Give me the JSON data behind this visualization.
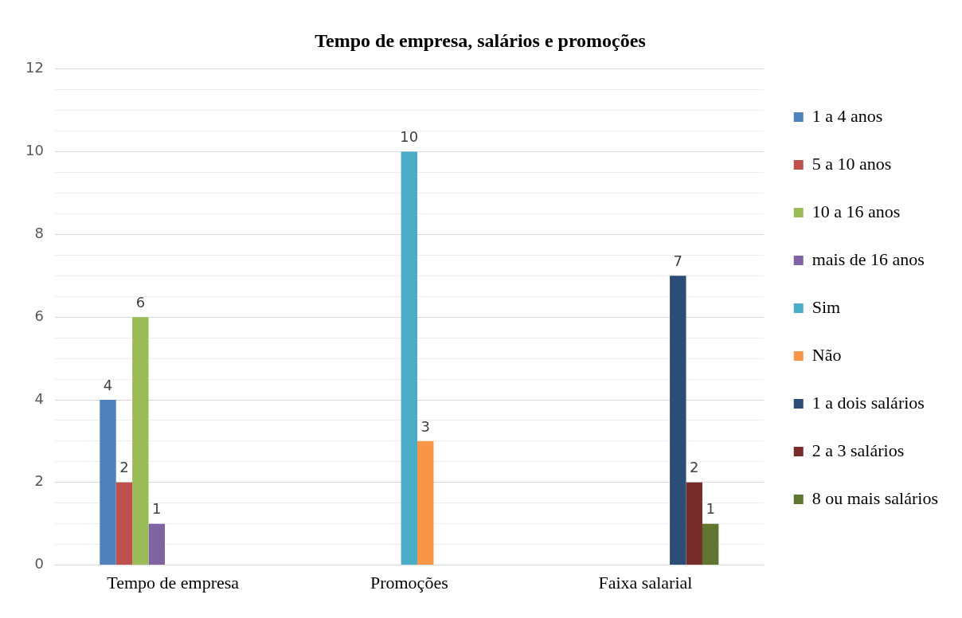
{
  "chart_data": {
    "type": "bar",
    "title": "Tempo de empresa, salários e promoções",
    "categories": [
      "Tempo de empresa",
      "Promoções",
      "Faixa salarial"
    ],
    "series": [
      {
        "name": "1 a 4 anos",
        "color": "#4f81bd",
        "values": [
          4,
          null,
          null
        ]
      },
      {
        "name": "5 a 10 anos",
        "color": "#c0504d",
        "values": [
          2,
          null,
          null
        ]
      },
      {
        "name": "10 a 16 anos",
        "color": "#9bbb59",
        "values": [
          6,
          null,
          null
        ]
      },
      {
        "name": "mais de 16 anos",
        "color": "#8064a2",
        "values": [
          1,
          null,
          null
        ]
      },
      {
        "name": "Sim",
        "color": "#4bacc6",
        "values": [
          null,
          10,
          null
        ]
      },
      {
        "name": "Não",
        "color": "#f79646",
        "values": [
          null,
          3,
          null
        ]
      },
      {
        "name": "1 a dois salários",
        "color": "#2c4d75",
        "values": [
          null,
          null,
          7
        ]
      },
      {
        "name": "2 a 3 salários",
        "color": "#772c2a",
        "values": [
          null,
          null,
          2
        ]
      },
      {
        "name": "8 ou mais salários",
        "color": "#5f7530",
        "values": [
          null,
          null,
          1
        ]
      }
    ],
    "ylim": [
      0,
      12
    ],
    "yticks": [
      0,
      {
        "value": 0.5,
        "label": null
      },
      {
        "value": 1,
        "label": null
      },
      {
        "value": 1.5,
        "label": null
      },
      2,
      {
        "value": 2.5,
        "label": null
      },
      {
        "value": 3,
        "label": null
      },
      {
        "value": 3.5,
        "label": null
      },
      4,
      {
        "value": 4.5,
        "label": null
      },
      {
        "value": 5,
        "label": null
      },
      {
        "value": 5.5,
        "label": null
      },
      6,
      {
        "value": 6.5,
        "label": null
      },
      {
        "value": 7,
        "label": null
      },
      {
        "value": 7.5,
        "label": null
      },
      8,
      {
        "value": 8.5,
        "label": null
      },
      {
        "value": 9,
        "label": null
      },
      {
        "value": 9.5,
        "label": null
      },
      10,
      {
        "value": 10.5,
        "label": null
      },
      {
        "value": 11,
        "label": null
      },
      {
        "value": 11.5,
        "label": null
      },
      12
    ],
    "grid": "y",
    "legend": "right",
    "data_labels": true
  }
}
